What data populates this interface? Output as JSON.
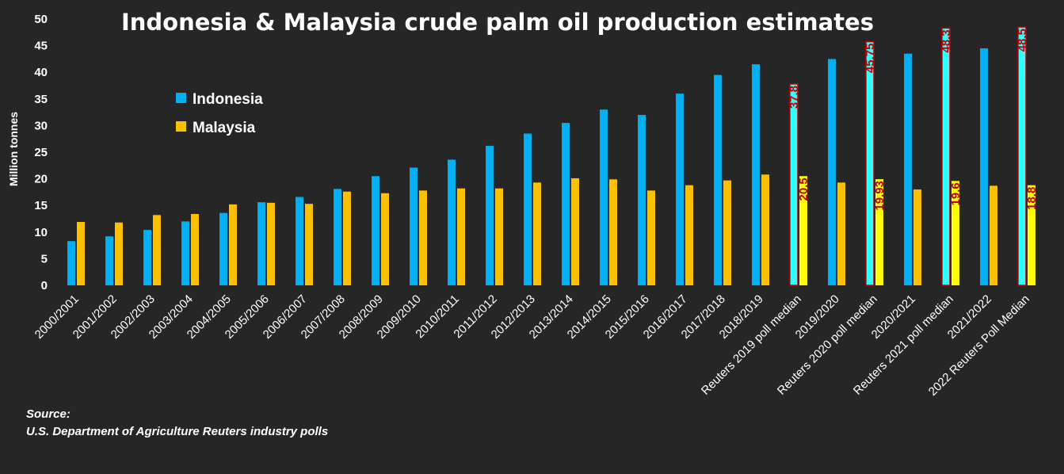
{
  "chart_data": {
    "type": "bar",
    "title": "Indonesia & Malaysia crude palm oil production estimates",
    "ylabel": "Million tonnes",
    "xlabel": "",
    "ylim": [
      0,
      50
    ],
    "yticks": [
      0,
      5,
      10,
      15,
      20,
      25,
      30,
      35,
      40,
      45,
      50
    ],
    "legend_position": "upper-left",
    "categories": [
      "2000/2001",
      "2001/2002",
      "2002/2003",
      "2003/2004",
      "2004/2005",
      "2005/2006",
      "2006/2007",
      "2007/2008",
      "2008/2009",
      "2009/2010",
      "2010/2011",
      "2011/2012",
      "2012/2013",
      "2013/2014",
      "2014/2015",
      "2015/2016",
      "2016/2017",
      "2017/2018",
      "2018/2019",
      "Reuters 2019 poll median",
      "2019/2020",
      "Reuters 2020 poll median",
      "2020/2021",
      "Reuters 2021 poll median",
      "2021/2022",
      "2022 Reuters Poll Median"
    ],
    "poll_categories": [
      19,
      21,
      23,
      25
    ],
    "series": [
      {
        "name": "Indonesia",
        "color": "#00b0f0",
        "poll_color": "#33ffff",
        "values": [
          8.3,
          9.2,
          10.4,
          12.0,
          13.6,
          15.6,
          16.6,
          18.1,
          20.5,
          22.1,
          23.6,
          26.2,
          28.5,
          30.5,
          33.0,
          32.0,
          36.0,
          39.5,
          41.5,
          37.8,
          42.5,
          45.75,
          43.5,
          48.3,
          44.5,
          48.5
        ]
      },
      {
        "name": "Malaysia",
        "color": "#ffc000",
        "poll_color": "#ffff00",
        "values": [
          11.9,
          11.8,
          13.2,
          13.4,
          15.2,
          15.5,
          15.3,
          17.6,
          17.3,
          17.8,
          18.2,
          18.2,
          19.3,
          20.1,
          19.9,
          17.8,
          18.8,
          19.7,
          20.8,
          20.5,
          19.3,
          19.93,
          18.0,
          19.6,
          18.7,
          18.8
        ]
      }
    ],
    "data_labels": [
      {
        "series": 0,
        "category": 19,
        "text": "37.8"
      },
      {
        "series": 1,
        "category": 19,
        "text": "20.5"
      },
      {
        "series": 0,
        "category": 21,
        "text": "45.75"
      },
      {
        "series": 1,
        "category": 21,
        "text": "19.93"
      },
      {
        "series": 0,
        "category": 23,
        "text": "48.3"
      },
      {
        "series": 1,
        "category": 23,
        "text": "19.6"
      },
      {
        "series": 0,
        "category": 25,
        "text": "48.5"
      },
      {
        "series": 1,
        "category": 25,
        "text": "18.8"
      }
    ],
    "source_label": "Source:",
    "source_text": "U.S. Department of Agriculture Reuters industry polls"
  }
}
